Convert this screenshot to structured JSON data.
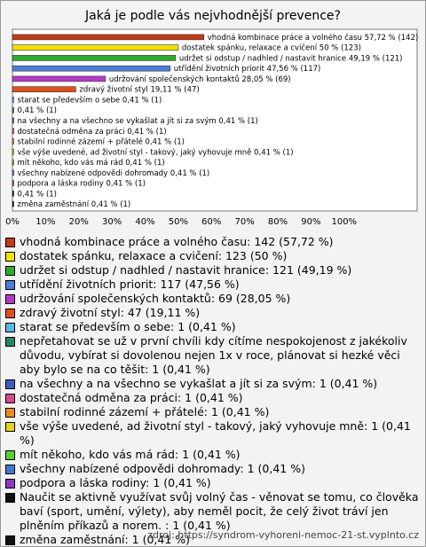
{
  "chart_data": {
    "type": "bar",
    "orientation": "horizontal",
    "title": "Jaká je podle vás nejvhodnější prevence?",
    "categories": [
      "vhodná kombinace práce a volného času",
      "dostatek spánku, relaxace a cvičení",
      "udržet si odstup / nadhled / nastavit hranice",
      "utřídění životních priorit",
      "udržování společenských kontaktů",
      "zdravý životní styl",
      "starat se především o sebe",
      null,
      "na všechny a na všechno se vykašlat a jít si za svým",
      "dostatečná odměna za práci",
      "stabilní rodinné zázemí + přátelé",
      "vše výše uvedené, ad životní styl - takový, jaký vyhovuje mně",
      "mít někoho, kdo vás má rád",
      "všechny nabízené odpovědi dohromady",
      "podpora a láska rodiny",
      null,
      "změna zaměstnání"
    ],
    "values": [
      57.72,
      50,
      49.19,
      47.56,
      28.05,
      19.11,
      0.41,
      0.41,
      0.41,
      0.41,
      0.41,
      0.41,
      0.41,
      0.41,
      0.41,
      0.41,
      0.41
    ],
    "value_labels": [
      "57,72 % (142)",
      "50 % (123)",
      "49,19 % (121)",
      "47,56 % (117)",
      "28,05 % (69)",
      "19,11 % (47)",
      "0,41 % (1)",
      "0,41 % (1)",
      "0,41 % (1)",
      "0,41 % (1)",
      "0,41 % (1)",
      "0,41 % (1)",
      "0,41 % (1)",
      "0,41 % (1)",
      "0,41 % (1)",
      "0,41 % (1)",
      "0,41 % (1)"
    ],
    "colors": [
      "#c23b16",
      "#f2e200",
      "#2eaa2e",
      "#4a7ed8",
      "#b43ac4",
      "#e04e1c",
      "#5bb8e8",
      "#1f8a6a",
      "#3a5bc8",
      "#d9488a",
      "#ee8a1a",
      "#e8d21a",
      "#5ccc3a",
      "#3a7ad0",
      "#8a3ac0",
      "#111111",
      "#111111"
    ],
    "legend_labels": [
      "vhodná kombinace práce a volného času: 142 (57,72 %)",
      "dostatek spánku, relaxace a cvičení: 123 (50 %)",
      "udržet si odstup / nadhled / nastavit hranice: 121 (49,19 %)",
      "utřídění životních priorit: 117 (47,56 %)",
      "udržování společenských kontaktů: 69 (28,05 %)",
      "zdravý životní styl: 47 (19,11 %)",
      "starat se především o sebe: 1 (0,41 %)",
      "nepřetahovat se už v první chvíli kdy cítíme nespokojenost z jakékoliv důvodu, vybírat si dovolenou nejen 1x v roce, plánovat si hezké věci aby bylo se na co těšit: 1 (0,41 %)",
      "na všechny a na všechno se vykašlat a jít si za svým: 1 (0,41 %)",
      "dostatečná odměna za práci: 1 (0,41 %)",
      "stabilní rodinné zázemí + přátelé: 1 (0,41 %)",
      "vše výše uvedené, ad životní styl - takový, jaký vyhovuje mně: 1 (0,41 %)",
      "mít někoho, kdo vás má rád: 1 (0,41 %)",
      "všechny nabízené odpovědi dohromady: 1 (0,41 %)",
      "podpora a láska rodiny: 1 (0,41 %)",
      "Naučit se aktivně využívat svůj volný čas - věnovat se tomu, co člověka baví (sport, umění, výlety), aby neměl pocit, že celý život tráví jen plněním příkazů a norem. : 1 (0,41 %)",
      "změna zaměstnání: 1 (0,41 %)"
    ],
    "xlim": [
      0,
      122
    ],
    "xticks": [
      {
        "value": 0,
        "label": "0%"
      },
      {
        "value": 10,
        "label": "10%"
      },
      {
        "value": 20,
        "label": "20%"
      },
      {
        "value": 30,
        "label": "30%"
      },
      {
        "value": 40,
        "label": "40%"
      },
      {
        "value": 50,
        "label": "50%"
      },
      {
        "value": 60,
        "label": "60%"
      },
      {
        "value": 70,
        "label": "70%"
      },
      {
        "value": 80,
        "label": "80%"
      },
      {
        "value": 90,
        "label": "90%"
      },
      {
        "value": 100,
        "label": "100%"
      }
    ],
    "source": "zdroj: https://syndrom-vyhoreni-nemoc-21-st.vyplnto.cz"
  }
}
